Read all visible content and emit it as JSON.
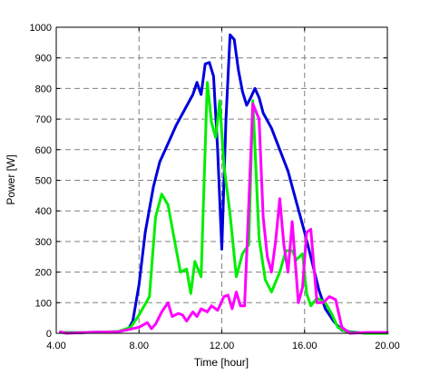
{
  "chart_data": {
    "type": "line",
    "title": "",
    "xlabel": "Time [hour]",
    "ylabel": "Power [W]",
    "xlim": [
      4,
      20
    ],
    "ylim": [
      0,
      1000
    ],
    "x_ticks": [
      4,
      8,
      12,
      16,
      20
    ],
    "x_tick_labels": [
      "4.00",
      "8.00",
      "12.00",
      "16.00",
      "20.00"
    ],
    "y_ticks": [
      0,
      100,
      200,
      300,
      400,
      500,
      600,
      700,
      800,
      900,
      1000
    ],
    "y_tick_labels": [
      "0",
      "100",
      "200",
      "300",
      "400",
      "500",
      "600",
      "700",
      "800",
      "900",
      "1000"
    ],
    "grid": true,
    "series": [
      {
        "color": "#0000dd",
        "points": [
          [
            4.2,
            3
          ],
          [
            5,
            2
          ],
          [
            6,
            4
          ],
          [
            7,
            5
          ],
          [
            7.5,
            15
          ],
          [
            7.7,
            40
          ],
          [
            8,
            160
          ],
          [
            8.3,
            330
          ],
          [
            8.7,
            480
          ],
          [
            9,
            560
          ],
          [
            9.4,
            620
          ],
          [
            9.8,
            680
          ],
          [
            10.2,
            730
          ],
          [
            10.6,
            780
          ],
          [
            10.8,
            820
          ],
          [
            11,
            780
          ],
          [
            11.2,
            880
          ],
          [
            11.4,
            885
          ],
          [
            11.6,
            840
          ],
          [
            11.8,
            600
          ],
          [
            12,
            275
          ],
          [
            12.2,
            700
          ],
          [
            12.4,
            975
          ],
          [
            12.6,
            960
          ],
          [
            12.8,
            860
          ],
          [
            13,
            790
          ],
          [
            13.2,
            745
          ],
          [
            13.4,
            770
          ],
          [
            13.6,
            800
          ],
          [
            13.8,
            770
          ],
          [
            14,
            720
          ],
          [
            14.4,
            670
          ],
          [
            14.8,
            600
          ],
          [
            15.2,
            530
          ],
          [
            15.6,
            430
          ],
          [
            16,
            330
          ],
          [
            16.3,
            250
          ],
          [
            16.7,
            140
          ],
          [
            17,
            80
          ],
          [
            17.4,
            40
          ],
          [
            17.8,
            10
          ],
          [
            18.2,
            5
          ],
          [
            19,
            0
          ],
          [
            20,
            0
          ]
        ]
      },
      {
        "color": "#00ee00",
        "points": [
          [
            4.2,
            3
          ],
          [
            5,
            2
          ],
          [
            6,
            4
          ],
          [
            7,
            6
          ],
          [
            7.6,
            20
          ],
          [
            8,
            60
          ],
          [
            8.5,
            120
          ],
          [
            8.8,
            380
          ],
          [
            9.1,
            455
          ],
          [
            9.4,
            420
          ],
          [
            9.7,
            310
          ],
          [
            10,
            200
          ],
          [
            10.3,
            210
          ],
          [
            10.5,
            130
          ],
          [
            10.7,
            235
          ],
          [
            11,
            185
          ],
          [
            11.3,
            820
          ],
          [
            11.5,
            690
          ],
          [
            11.7,
            640
          ],
          [
            11.9,
            760
          ],
          [
            12.1,
            550
          ],
          [
            12.4,
            390
          ],
          [
            12.7,
            185
          ],
          [
            13,
            260
          ],
          [
            13.3,
            290
          ],
          [
            13.5,
            760
          ],
          [
            13.8,
            310
          ],
          [
            14.1,
            175
          ],
          [
            14.4,
            135
          ],
          [
            14.8,
            200
          ],
          [
            15.1,
            270
          ],
          [
            15.4,
            270
          ],
          [
            15.6,
            240
          ],
          [
            15.9,
            260
          ],
          [
            16.1,
            130
          ],
          [
            16.3,
            90
          ],
          [
            16.6,
            115
          ],
          [
            17,
            100
          ],
          [
            17.3,
            65
          ],
          [
            17.6,
            20
          ],
          [
            18,
            5
          ],
          [
            19,
            0
          ],
          [
            20,
            0
          ]
        ]
      },
      {
        "color": "#ff00ff",
        "points": [
          [
            4.2,
            5
          ],
          [
            4.5,
            0
          ],
          [
            5.5,
            3
          ],
          [
            7,
            5
          ],
          [
            8,
            20
          ],
          [
            8.4,
            35
          ],
          [
            8.6,
            15
          ],
          [
            8.8,
            30
          ],
          [
            9.1,
            70
          ],
          [
            9.4,
            100
          ],
          [
            9.6,
            55
          ],
          [
            9.9,
            65
          ],
          [
            10.1,
            60
          ],
          [
            10.3,
            40
          ],
          [
            10.6,
            70
          ],
          [
            10.8,
            55
          ],
          [
            11,
            80
          ],
          [
            11.3,
            70
          ],
          [
            11.5,
            90
          ],
          [
            11.8,
            75
          ],
          [
            12.1,
            120
          ],
          [
            12.3,
            125
          ],
          [
            12.5,
            80
          ],
          [
            12.7,
            135
          ],
          [
            12.9,
            90
          ],
          [
            13.1,
            90
          ],
          [
            13.3,
            420
          ],
          [
            13.5,
            750
          ],
          [
            13.8,
            700
          ],
          [
            14,
            380
          ],
          [
            14.2,
            250
          ],
          [
            14.4,
            200
          ],
          [
            14.6,
            300
          ],
          [
            14.8,
            440
          ],
          [
            15,
            290
          ],
          [
            15.2,
            200
          ],
          [
            15.4,
            365
          ],
          [
            15.7,
            100
          ],
          [
            15.9,
            150
          ],
          [
            16.1,
            330
          ],
          [
            16.3,
            340
          ],
          [
            16.6,
            100
          ],
          [
            16.9,
            100
          ],
          [
            17.2,
            120
          ],
          [
            17.5,
            110
          ],
          [
            17.8,
            20
          ],
          [
            18.2,
            0
          ],
          [
            19,
            3
          ],
          [
            20,
            3
          ]
        ]
      }
    ]
  }
}
